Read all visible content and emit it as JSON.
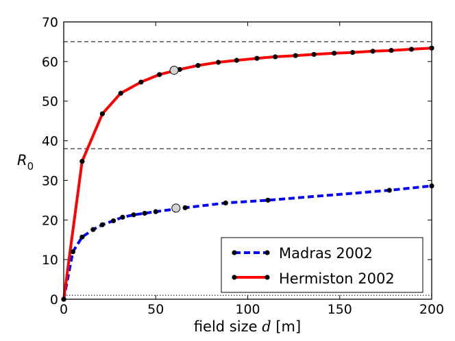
{
  "chart_data": {
    "type": "line",
    "xlabel": "field size d [m]",
    "xlabel_prefix": "field size ",
    "xlabel_var": "d",
    "xlabel_suffix": " [m]",
    "ylabel": "R0",
    "ylabel_base": "R",
    "ylabel_sub": "0",
    "xlim": [
      0,
      200
    ],
    "ylim": [
      0,
      70
    ],
    "xticks": [
      0,
      50,
      100,
      150,
      200
    ],
    "yticks": [
      0,
      10,
      20,
      30,
      40,
      50,
      60,
      70
    ],
    "xtick_labels": [
      "0",
      "50",
      "100",
      "150",
      "200"
    ],
    "ytick_labels": [
      "0",
      "10",
      "20",
      "30",
      "40",
      "50",
      "60",
      "70"
    ],
    "reference_lines": [
      {
        "y": 65,
        "style": "dashed"
      },
      {
        "y": 38,
        "style": "dashed"
      },
      {
        "y": 1,
        "style": "dotted"
      }
    ],
    "series": [
      {
        "name": "Madras 2002",
        "color": "#0000ff",
        "line_style": "dashed",
        "x": [
          0,
          5,
          10,
          16,
          21,
          27,
          32,
          38,
          44,
          50,
          66,
          88,
          111,
          177,
          200
        ],
        "y": [
          0,
          12,
          15.7,
          17.6,
          18.8,
          19.8,
          20.7,
          21.3,
          21.7,
          22.1,
          23.1,
          24.3,
          25,
          27.5,
          28.6
        ],
        "highlight": {
          "x": 61,
          "y": 23
        }
      },
      {
        "name": "Hermiston 2002",
        "color": "#ff0000",
        "line_style": "solid",
        "x": [
          0,
          10,
          21,
          31,
          42,
          52,
          63,
          73,
          84,
          94,
          105,
          115,
          126,
          136,
          147,
          157,
          168,
          178,
          189,
          200
        ],
        "y": [
          0,
          34.8,
          46.8,
          52,
          54.8,
          56.7,
          58,
          59,
          59.8,
          60.3,
          60.8,
          61.2,
          61.5,
          61.8,
          62.1,
          62.3,
          62.6,
          62.8,
          63.1,
          63.4
        ],
        "highlight": {
          "x": 60,
          "y": 57.8
        }
      }
    ],
    "legend": {
      "position": "lower-right",
      "entries": [
        "Madras 2002",
        "Hermiston 2002"
      ]
    }
  }
}
